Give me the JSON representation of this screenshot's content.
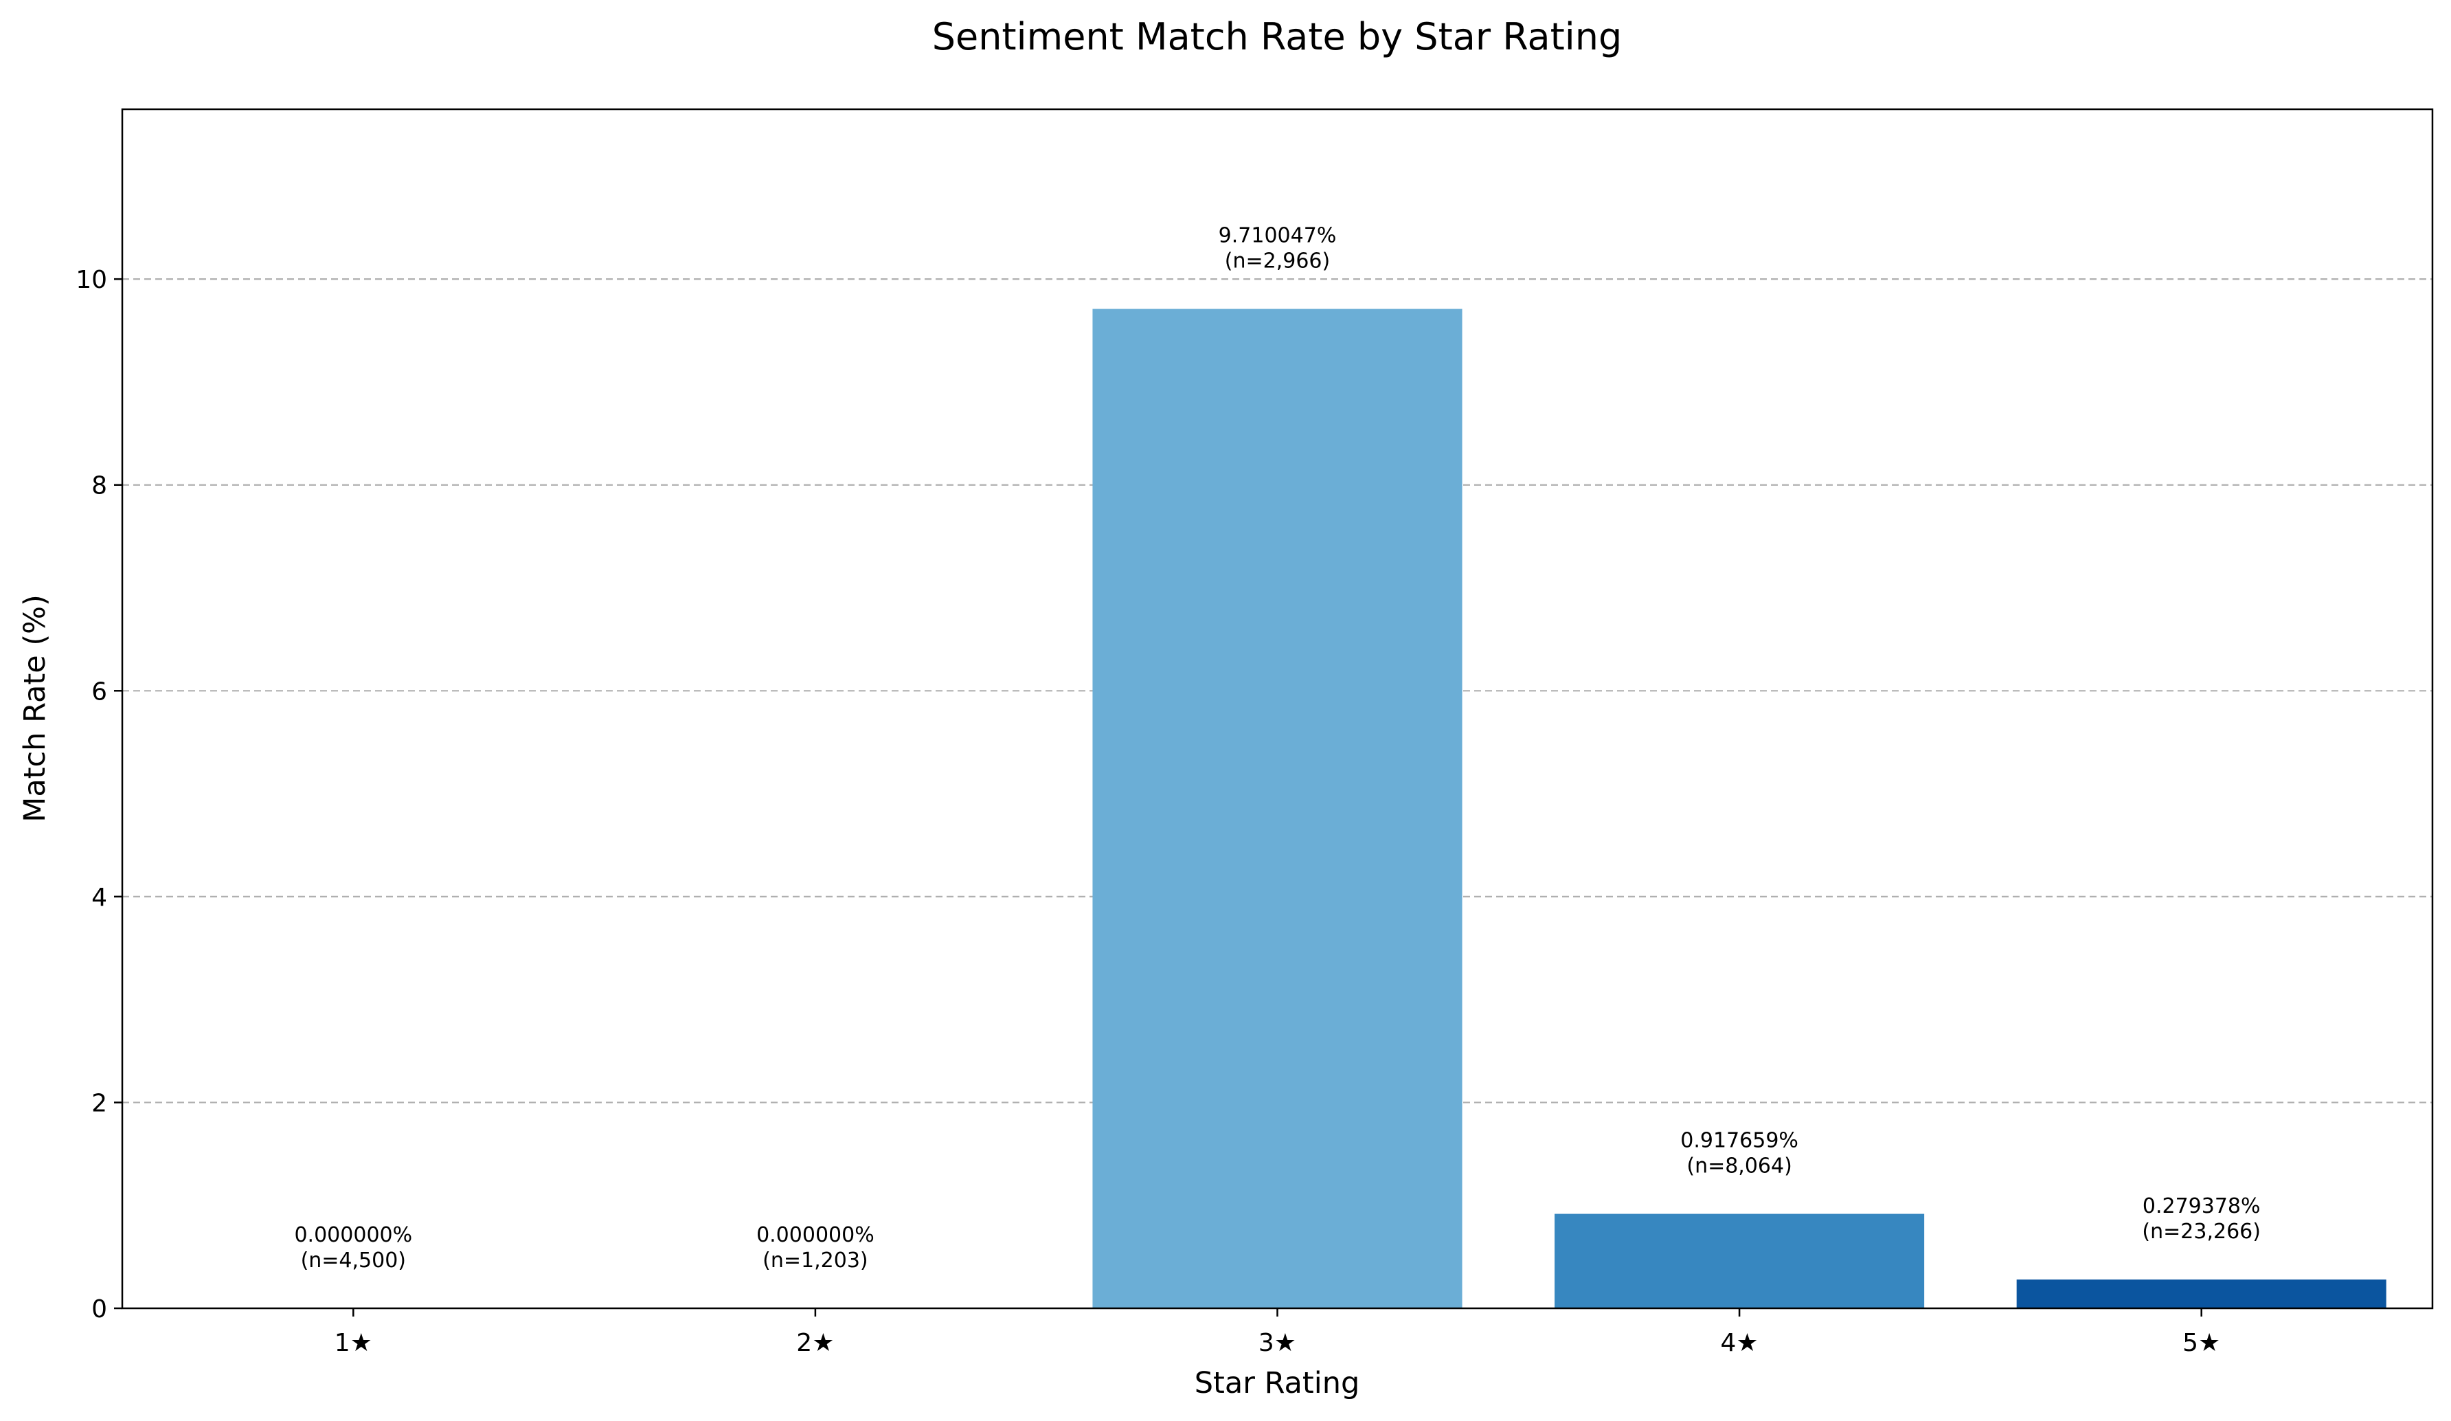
{
  "chart_data": {
    "type": "bar",
    "title": "Sentiment Match Rate by Star Rating",
    "xlabel": "Star Rating",
    "ylabel": "Match Rate (%)",
    "categories": [
      "1★",
      "2★",
      "3★",
      "4★",
      "5★"
    ],
    "values": [
      0.0,
      0.0,
      9.710047,
      0.917659,
      0.279378
    ],
    "value_labels": [
      "0.000000%",
      "0.000000%",
      "9.710047%",
      "0.917659%",
      "0.279378%"
    ],
    "n_labels": [
      "(n=4,500)",
      "(n=1,203)",
      "(n=2,966)",
      "(n=8,064)",
      "(n=23,266)"
    ],
    "colors": [
      "#c6dbef",
      "#9ecae1",
      "#6baed6",
      "#3787c0",
      "#0b559f"
    ],
    "ylim": [
      0,
      11.65
    ],
    "yticks": [
      0,
      2,
      4,
      6,
      8,
      10
    ],
    "grid": "y-dashed",
    "legend": "none"
  }
}
